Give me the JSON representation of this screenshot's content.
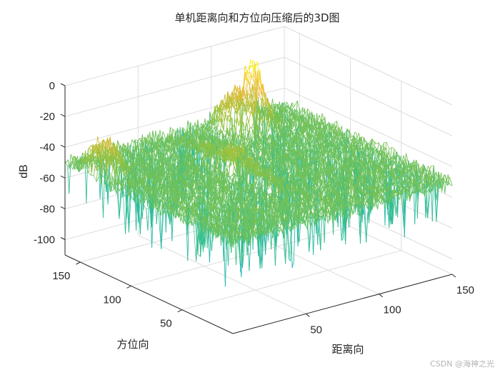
{
  "chart_data": {
    "type": "surface-mesh",
    "title": "单机距离向和方位向压缩后的3D图",
    "xlabel": "距离向",
    "ylabel": "方位向",
    "zlabel": "dB",
    "xlim": [
      0,
      150
    ],
    "ylim": [
      0,
      165
    ],
    "zlim": [
      -110,
      0
    ],
    "xticks": [
      50,
      100,
      150
    ],
    "yticks": [
      50,
      100,
      150
    ],
    "zticks": [
      0,
      -20,
      -40,
      -60,
      -80,
      -100
    ],
    "grid": true,
    "colormap": "parula",
    "view": "3D default (az -37.5, el 30)",
    "features": {
      "main_peak": {
        "range": 118,
        "azimuth": 150,
        "db": -10
      },
      "central_block": {
        "range": 68,
        "azimuth": 95,
        "db": -37
      },
      "left_ridge_peaks": {
        "range": 10,
        "azimuth": 140,
        "db": -31
      },
      "right_ridge_peak": {
        "range": 150,
        "azimuth": 110,
        "db": -45
      },
      "noise_floor_db": [
        -100,
        -70
      ]
    }
  },
  "figure": {
    "title": "单机距离向和方位向压缩后的3D图",
    "watermark": "CSDN @海神之光"
  },
  "colors": {
    "axis": "#262626",
    "grid": "#dcdcdc",
    "parula": [
      "#3e26a8",
      "#2e87f7",
      "#14b4c9",
      "#3ec080",
      "#9ec238",
      "#f1bc39",
      "#f9fb0e"
    ]
  }
}
